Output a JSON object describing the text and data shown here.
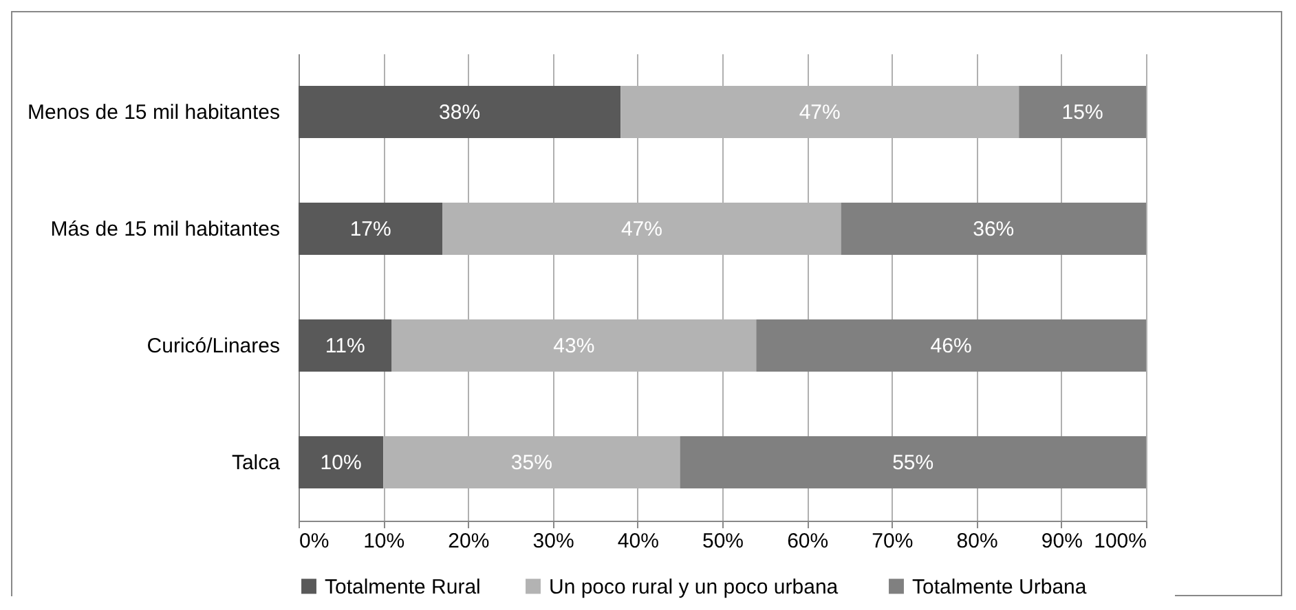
{
  "chart_data": {
    "type": "bar",
    "orientation": "horizontal",
    "stacked": true,
    "categories": [
      "Menos de 15 mil habitantes",
      "Más de 15 mil habitantes",
      "Curicó/Linares",
      "Talca"
    ],
    "series": [
      {
        "name": "Totalmente Rural",
        "color": "#595959",
        "values": [
          38,
          17,
          11,
          10
        ],
        "value_labels": [
          "38%",
          "17%",
          "11%",
          "10%"
        ]
      },
      {
        "name": "Un poco rural  y un poco urbana",
        "color": "#b3b3b3",
        "values": [
          47,
          47,
          43,
          35
        ],
        "value_labels": [
          "47%",
          "47%",
          "43%",
          "35%"
        ]
      },
      {
        "name": "Totalmente Urbana",
        "color": "#808080",
        "values": [
          15,
          36,
          46,
          55
        ],
        "value_labels": [
          "15%",
          "36%",
          "46%",
          "55%"
        ]
      }
    ],
    "xlim": [
      0,
      100
    ],
    "xticks": [
      {
        "value": 0,
        "label": "0%"
      },
      {
        "value": 10,
        "label": "10%"
      },
      {
        "value": 20,
        "label": "20%"
      },
      {
        "value": 30,
        "label": "30%"
      },
      {
        "value": 40,
        "label": "40%"
      },
      {
        "value": 50,
        "label": "50%"
      },
      {
        "value": 60,
        "label": "60%"
      },
      {
        "value": 70,
        "label": "70%"
      },
      {
        "value": 80,
        "label": "80%"
      },
      {
        "value": 90,
        "label": "90%"
      },
      {
        "value": 100,
        "label": "100%"
      }
    ],
    "grid": "x",
    "legend": "bottom"
  }
}
